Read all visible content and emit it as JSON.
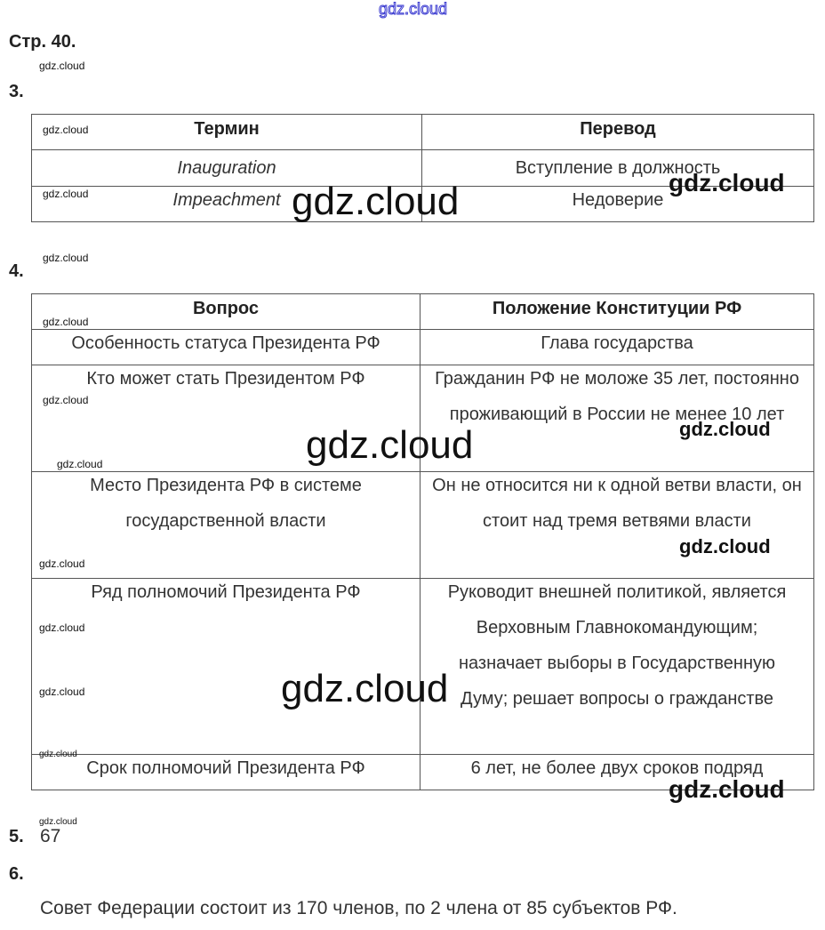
{
  "watermark": "gdz.cloud",
  "page_title": "Стр. 40.",
  "task3": {
    "number": "3.",
    "headers": [
      "Термин",
      "Перевод"
    ],
    "rows": [
      [
        "Inauguration",
        "Вступление в должность"
      ],
      [
        "Impeachment",
        "Недоверие"
      ]
    ]
  },
  "task4": {
    "number": "4.",
    "headers": [
      "Вопрос",
      "Положение Конституции РФ"
    ],
    "rows": [
      [
        "Особенность статуса Президента РФ",
        "Глава государства"
      ],
      [
        "Кто может стать Президентом РФ",
        "Гражданин РФ не моложе 35 лет, постоянно проживающий в России не менее 10 лет"
      ],
      [
        "Место Президента РФ в системе государственной власти",
        "Он не относится ни к одной ветви власти, он стоит над тремя ветвями власти"
      ],
      [
        "Ряд полномочий Президента РФ",
        "Руководит внешней политикой, является Верховным Главнокомандующим; назначает выборы в Государственную Думу; решает вопросы о гражданстве"
      ],
      [
        "Срок полномочий Президента РФ",
        "6 лет, не более двух сроков подряд"
      ]
    ]
  },
  "task5": {
    "number": "5.",
    "answer": "67"
  },
  "task6": {
    "number": "6.",
    "answer": "Совет Федерации состоит из 170 членов, по 2 члена от 85 субъектов РФ."
  }
}
